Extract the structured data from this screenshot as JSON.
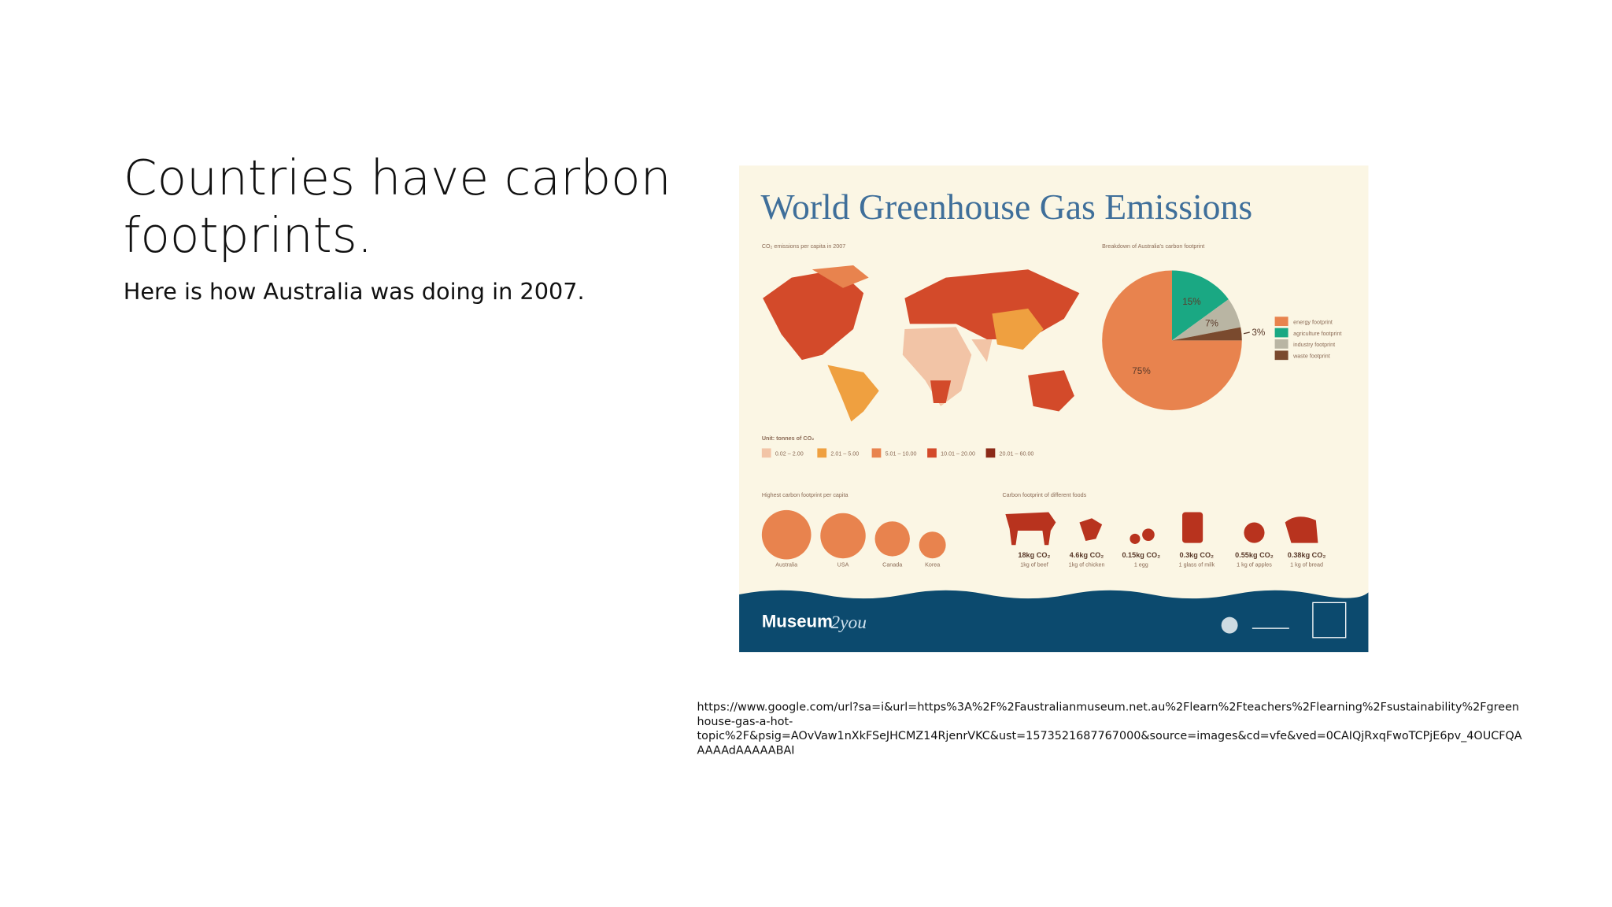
{
  "slide": {
    "title_lines": [
      "Countries have carbon",
      "footprints."
    ],
    "subtitle": "Here is how Australia was doing in 2007.",
    "source_lines": [
      "https://www.google.com/url?sa=i&url=https%3A%2F%2Faustralianmuseum.net.au%2Flearn%2Fteachers%2Flearning%2Fsustainability%2Fgreen",
      "house-gas-a-hot-",
      "topic%2F&psig=AOvVaw1nXkFSeJHCMZ14RjenrVKC&ust=1573521687767000&source=images&cd=vfe&ved=0CAIQjRxqFwoTCPjE6pv_4OUCFQA",
      "AAAAdAAAAABAI"
    ]
  },
  "infographic": {
    "title": "World Greenhouse Gas Emissions",
    "map": {
      "title": "CO₂ emissions per capita in 2007",
      "unit": "Unit: tonnes of CO₂",
      "legend": [
        "0.02 – 2.00",
        "2.01 – 5.00",
        "5.01 – 10.00",
        "10.01 – 20.00",
        "20.01 – 60.00"
      ],
      "colors": [
        "#f2c4a6",
        "#efa040",
        "#e8834e",
        "#d34a2a",
        "#8b2a18"
      ]
    },
    "per_capita": {
      "title": "Highest carbon footprint per capita",
      "countries": [
        "Australia",
        "USA",
        "Canada",
        "Korea"
      ]
    },
    "foods": {
      "title": "Carbon footprint of different foods",
      "amounts": [
        "18kg CO₂",
        "4.6kg CO₂",
        "0.15kg CO₂",
        "0.3kg CO₂",
        "0.55kg CO₂",
        "0.38kg CO₂"
      ],
      "items": [
        "1kg of beef",
        "1kg of chicken",
        "1 egg",
        "1 glass of milk",
        "1 kg of apples",
        "1 kg of bread"
      ]
    },
    "brand": {
      "name": "Museum",
      "suffix": "2you"
    }
  },
  "chart_data": {
    "type": "pie",
    "title": "Breakdown of Australia's carbon footprint",
    "categories": [
      "energy footprint",
      "agriculture footprint",
      "industry footprint",
      "waste footprint"
    ],
    "values": [
      75,
      15,
      7,
      3
    ],
    "value_labels": [
      "75%",
      "15%",
      "7%",
      "3%"
    ],
    "colors": [
      "#e8834e",
      "#1aa883",
      "#b9b5a3",
      "#7a4a2e"
    ]
  }
}
